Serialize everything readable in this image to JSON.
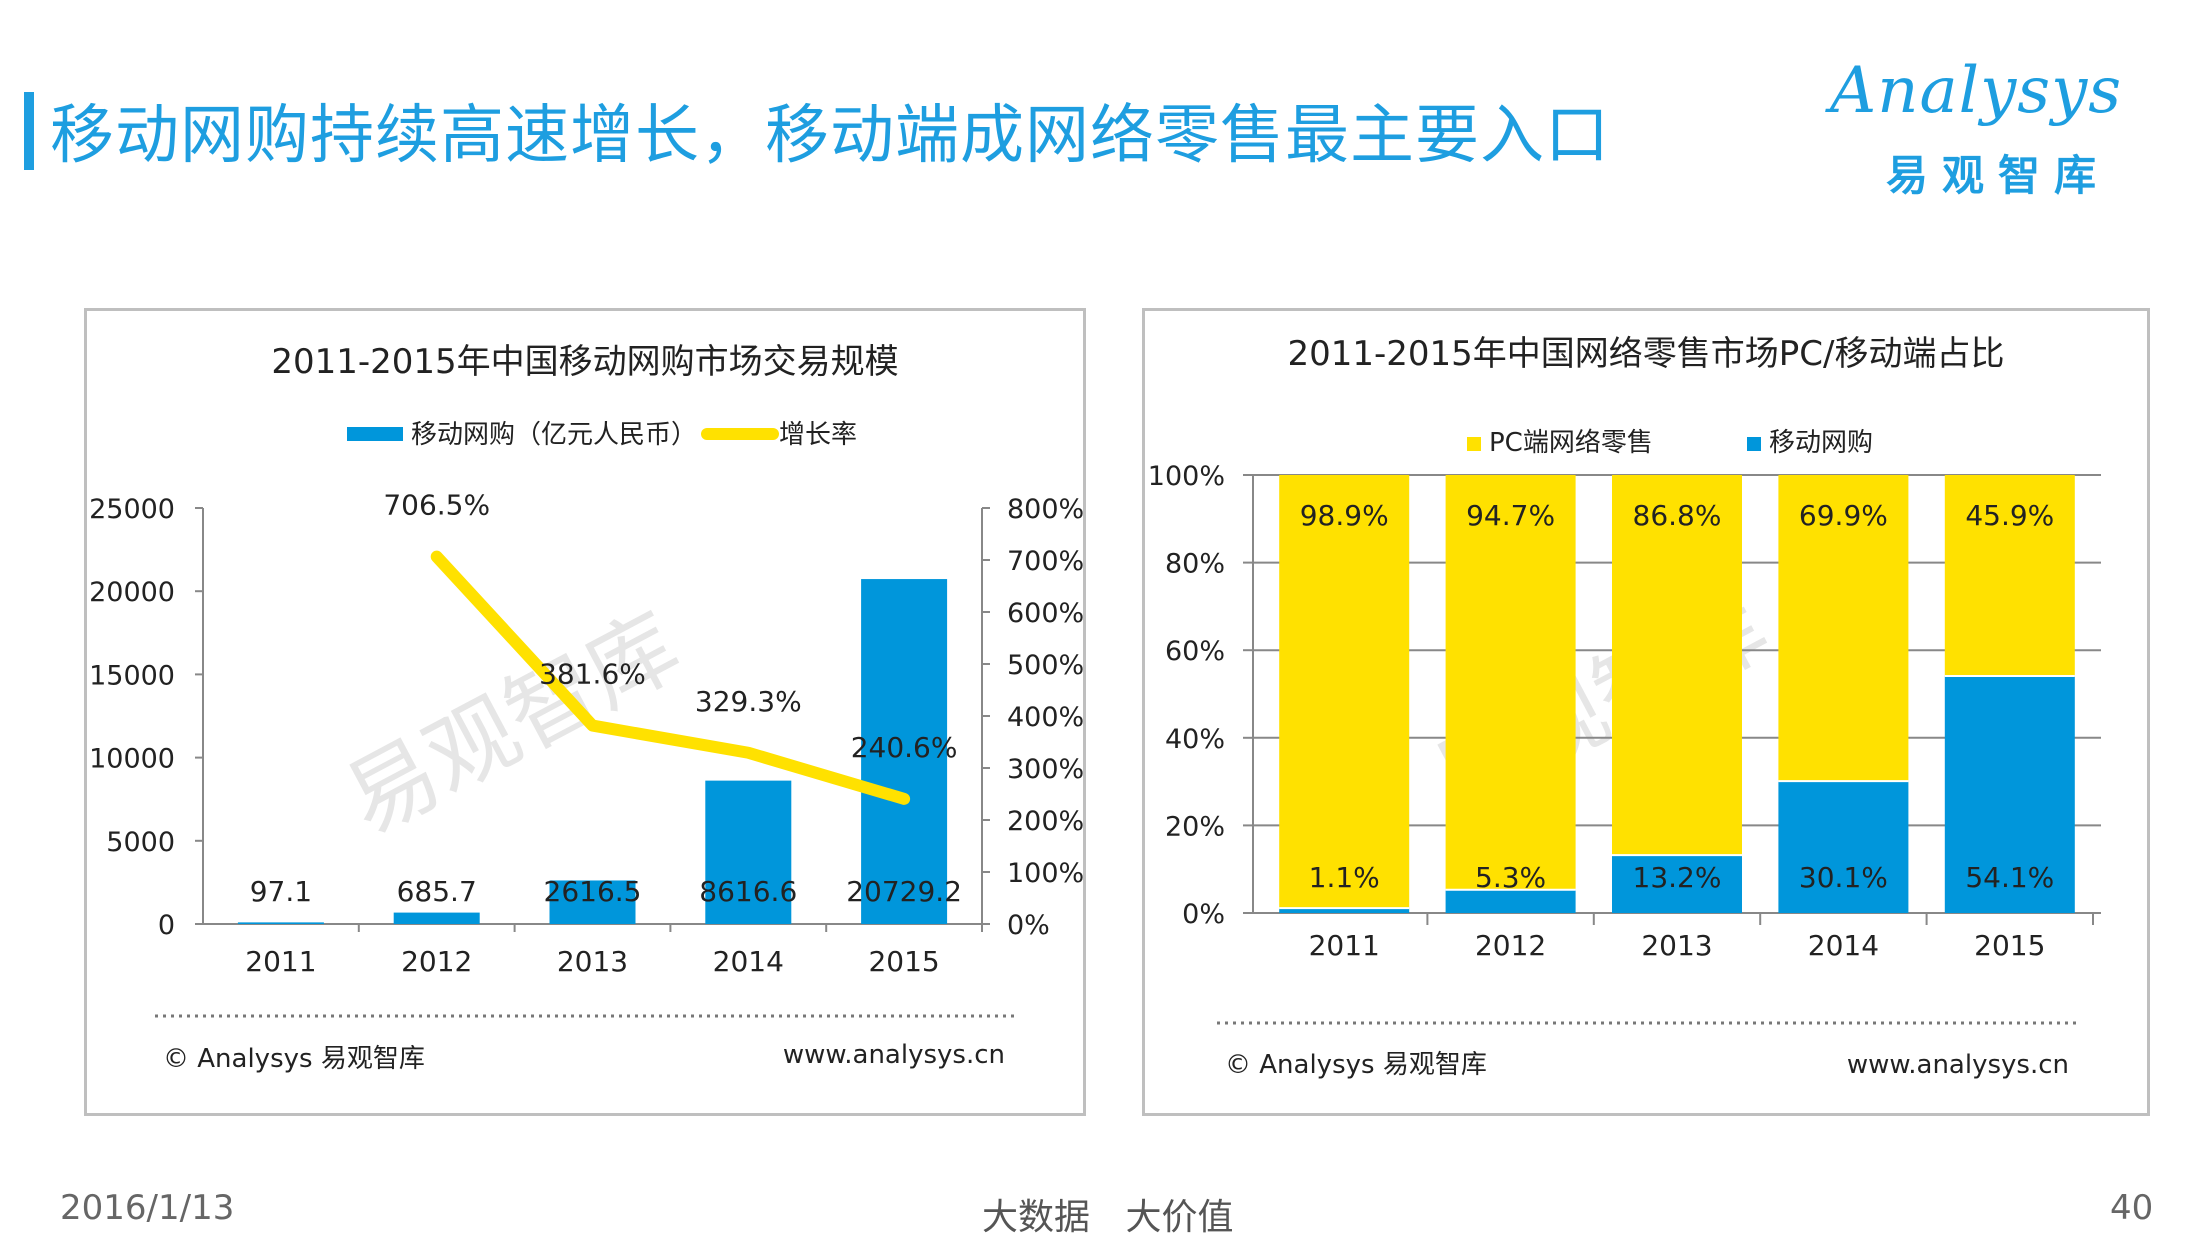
{
  "page": {
    "title": "移动网购持续高速增长，移动端成网络零售最主要入口",
    "logo_text": "Analysys",
    "logo_sub": "易观智库",
    "footer_date": "2016/1/13",
    "footer_center": "大数据 大价值",
    "page_number": "40",
    "watermark": "易观智库",
    "copyright": "© Analysys 易观智库",
    "website": "www.analysys.cn",
    "colors": {
      "accent": "#1E9EE0",
      "bar_blue": "#0096DB",
      "yellow": "#FFE100"
    }
  },
  "chart_data": [
    {
      "type": "bar",
      "title": "2011-2015年中国移动网购市场交易规模",
      "categories": [
        "2011",
        "2012",
        "2013",
        "2014",
        "2015"
      ],
      "series": [
        {
          "name": "移动网购（亿元人民币）",
          "type": "bar",
          "values": [
            97.1,
            685.7,
            2616.5,
            8616.6,
            20729.2
          ],
          "labels": [
            "97.1",
            "685.7",
            "2616.5",
            "8616.6",
            "20729.2"
          ]
        },
        {
          "name": "增长率",
          "type": "line",
          "axis": "right",
          "values": [
            null,
            706.5,
            381.6,
            329.3,
            240.6
          ],
          "labels": [
            "",
            "706.5%",
            "381.6%",
            "329.3%",
            "240.6%"
          ]
        }
      ],
      "ylim": [
        0,
        25000
      ],
      "yticks": [
        "0",
        "5000",
        "10000",
        "15000",
        "20000",
        "25000"
      ],
      "y2lim": [
        0,
        800
      ],
      "y2ticks": [
        "0%",
        "100%",
        "200%",
        "300%",
        "400%",
        "500%",
        "600%",
        "700%",
        "800%"
      ],
      "legend_position": "top",
      "grid": false
    },
    {
      "type": "bar",
      "stacked": true,
      "title": "2011-2015年中国网络零售市场PC/移动端占比",
      "categories": [
        "2011",
        "2012",
        "2013",
        "2014",
        "2015"
      ],
      "series": [
        {
          "name": "PC端网络零售",
          "values": [
            98.9,
            94.7,
            86.8,
            69.9,
            45.9
          ],
          "labels": [
            "98.9%",
            "94.7%",
            "86.8%",
            "69.9%",
            "45.9%"
          ]
        },
        {
          "name": "移动网购",
          "values": [
            1.1,
            5.3,
            13.2,
            30.1,
            54.1
          ],
          "labels": [
            "1.1%",
            "5.3%",
            "13.2%",
            "30.1%",
            "54.1%"
          ]
        }
      ],
      "ylim": [
        0,
        100
      ],
      "yticks": [
        "0%",
        "20%",
        "40%",
        "60%",
        "80%",
        "100%"
      ],
      "legend_position": "top",
      "grid": true
    }
  ]
}
